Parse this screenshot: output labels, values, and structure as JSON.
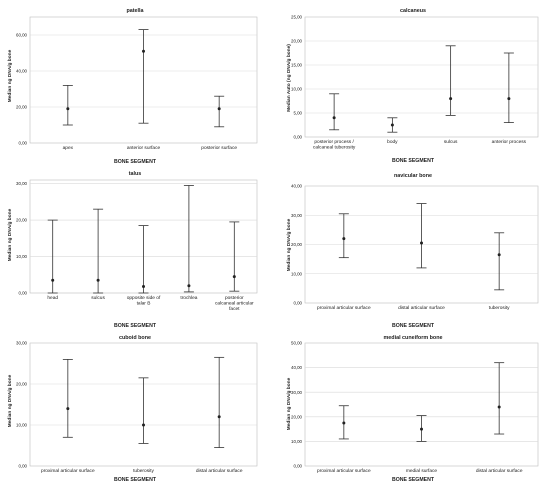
{
  "chart_data": [
    {
      "type": "errorbar",
      "title": "patella",
      "xlabel": "BONE SEGMENT",
      "ylabel": "Median ng DNA/g bone",
      "ylim": [
        0,
        70
      ],
      "yticks": [
        0,
        20,
        40,
        60
      ],
      "ytick_labels": [
        "0,00",
        "20,00",
        "40,00",
        "60,00"
      ],
      "grid": true,
      "categories": [
        [
          "apex"
        ],
        [
          "anterior surface"
        ],
        [
          "posterior surface"
        ]
      ],
      "median": [
        19,
        51,
        19
      ],
      "lower": [
        10,
        11,
        9
      ],
      "upper": [
        32,
        63,
        26
      ]
    },
    {
      "type": "errorbar",
      "title": "calcaneus",
      "xlabel": "BONE SEGMENT",
      "ylabel": "Median Auto (ng DNA/g bone)",
      "ylim": [
        0,
        25
      ],
      "yticks": [
        0,
        5,
        10,
        15,
        20,
        25
      ],
      "ytick_labels": [
        "0,00",
        "5,00",
        "10,00",
        "15,00",
        "20,00",
        "25,00"
      ],
      "grid": true,
      "categories": [
        [
          "posterior process /",
          "calcaneal tuberosity"
        ],
        [
          "body"
        ],
        [
          "sulcus"
        ],
        [
          "anterior process"
        ]
      ],
      "median": [
        4,
        2.5,
        8,
        8
      ],
      "lower": [
        1.5,
        1,
        4.5,
        3
      ],
      "upper": [
        9,
        4,
        19,
        17.5
      ]
    },
    {
      "type": "errorbar",
      "title": "talus",
      "xlabel": "BONE SEGMENT",
      "ylabel": "Median ng DNA/g bone",
      "ylim": [
        0,
        31
      ],
      "yticks": [
        0,
        10,
        20,
        30
      ],
      "ytick_labels": [
        "0,00",
        "10,00",
        "20,00",
        "30,00"
      ],
      "grid": true,
      "categories": [
        [
          "head"
        ],
        [
          "sulcus"
        ],
        [
          "opposite side of",
          "talar B"
        ],
        [
          "trochlea"
        ],
        [
          "posterior",
          "calcaneal articular",
          "facet"
        ]
      ],
      "median": [
        3.5,
        3.5,
        1.8,
        2,
        4.5
      ],
      "lower": [
        0,
        0,
        0,
        0.3,
        0.5
      ],
      "upper": [
        20,
        23,
        18.5,
        29.5,
        19.5
      ]
    },
    {
      "type": "errorbar",
      "title": "navicular bone",
      "xlabel": "BONE SEGMENT",
      "ylabel": "Median ng DNA/g bone",
      "ylim": [
        0,
        40
      ],
      "yticks": [
        0,
        10,
        20,
        30,
        40
      ],
      "ytick_labels": [
        "0,00",
        "10,00",
        "20,00",
        "30,00",
        "40,00"
      ],
      "grid": true,
      "categories": [
        [
          "proximal articular surface"
        ],
        [
          "distal articular surface"
        ],
        [
          "tuberosity"
        ]
      ],
      "median": [
        22,
        20.5,
        16.5
      ],
      "lower": [
        15.5,
        12,
        4.5
      ],
      "upper": [
        30.5,
        34,
        24
      ]
    },
    {
      "type": "errorbar",
      "title": "cuboid bone",
      "xlabel": "BONE SEGMENT",
      "ylabel": "Median ng DNA/g bone",
      "ylim": [
        0,
        30
      ],
      "yticks": [
        0,
        10,
        20,
        30
      ],
      "ytick_labels": [
        "0,00",
        "10,00",
        "20,00",
        "30,00"
      ],
      "grid": true,
      "categories": [
        [
          "proximal articular surface"
        ],
        [
          "tuberosity"
        ],
        [
          "distal articular surface"
        ]
      ],
      "median": [
        14,
        10,
        12
      ],
      "lower": [
        7,
        5.5,
        4.5
      ],
      "upper": [
        26,
        21.5,
        26.5
      ]
    },
    {
      "type": "errorbar",
      "title": "medial cuneiform bone",
      "xlabel": "BONE SEGMENT",
      "ylabel": "Median ng DNA/g bone",
      "ylim": [
        0,
        50
      ],
      "yticks": [
        0,
        10,
        20,
        30,
        40,
        50
      ],
      "ytick_labels": [
        "0,00",
        "10,00",
        "20,00",
        "30,00",
        "40,00",
        "50,00"
      ],
      "grid": true,
      "categories": [
        [
          "proximal articular surface"
        ],
        [
          "medial surface"
        ],
        [
          "distal articular surface"
        ]
      ],
      "median": [
        17.5,
        15,
        24
      ],
      "lower": [
        11,
        10,
        13
      ],
      "upper": [
        24.5,
        20.5,
        42
      ]
    }
  ]
}
